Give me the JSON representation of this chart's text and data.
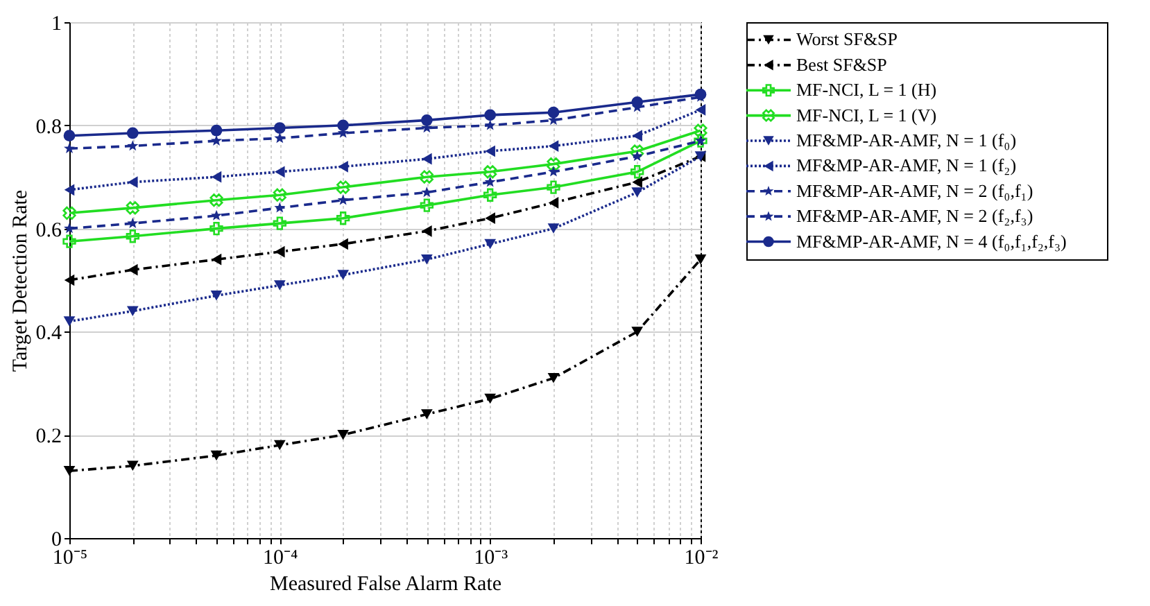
{
  "chart_data": {
    "type": "line",
    "xlabel": "Measured False Alarm Rate",
    "ylabel": "Target Detection Rate",
    "log": "x",
    "grid": true,
    "legend": "right",
    "x": [
      1e-05,
      2e-05,
      5e-05,
      0.0001,
      0.0002,
      0.0005,
      0.001,
      0.002,
      0.005,
      0.01
    ],
    "xlim": [
      1e-05,
      0.01
    ],
    "xticks": [
      {
        "value": 1e-05,
        "label": "10⁻⁵"
      },
      {
        "value": 2e-05,
        "label": null
      },
      {
        "value": 3e-05,
        "label": null
      },
      {
        "value": 4e-05,
        "label": null
      },
      {
        "value": 5e-05,
        "label": null
      },
      {
        "value": 6e-05,
        "label": null
      },
      {
        "value": 7e-05,
        "label": null
      },
      {
        "value": 8e-05,
        "label": null
      },
      {
        "value": 9e-05,
        "label": null
      },
      {
        "value": 0.0001,
        "label": "10⁻⁴"
      },
      {
        "value": 0.0002,
        "label": null
      },
      {
        "value": 0.0003,
        "label": null
      },
      {
        "value": 0.0004,
        "label": null
      },
      {
        "value": 0.0005,
        "label": null
      },
      {
        "value": 0.0006,
        "label": null
      },
      {
        "value": 0.0007,
        "label": null
      },
      {
        "value": 0.0008,
        "label": null
      },
      {
        "value": 0.0009,
        "label": null
      },
      {
        "value": 0.001,
        "label": "10⁻³"
      },
      {
        "value": 0.002,
        "label": null
      },
      {
        "value": 0.003,
        "label": null
      },
      {
        "value": 0.004,
        "label": null
      },
      {
        "value": 0.005,
        "label": null
      },
      {
        "value": 0.006,
        "label": null
      },
      {
        "value": 0.007,
        "label": null
      },
      {
        "value": 0.008,
        "label": null
      },
      {
        "value": 0.009,
        "label": null
      },
      {
        "value": 0.01,
        "label": "10⁻²"
      }
    ],
    "ylim": [
      0,
      1
    ],
    "yticks": [
      0,
      0.2,
      0.4,
      0.6,
      0.8,
      1
    ],
    "series": [
      {
        "name": "Worst SF&SP",
        "color": "#000000",
        "marker": "triangle-down",
        "line_style": "dashdot",
        "values": [
          0.13,
          0.14,
          0.16,
          0.18,
          0.2,
          0.24,
          0.27,
          0.31,
          0.4,
          0.54
        ]
      },
      {
        "name": "Best SF&SP",
        "color": "#000000",
        "marker": "triangle-left",
        "line_style": "dashdot",
        "values": [
          0.5,
          0.52,
          0.54,
          0.555,
          0.57,
          0.595,
          0.62,
          0.65,
          0.69,
          0.74
        ]
      },
      {
        "name": "MF-NCI, L = 1 (H)",
        "color": "#22dd22",
        "marker": "cross",
        "line_style": "solid",
        "values": [
          0.575,
          0.585,
          0.6,
          0.61,
          0.62,
          0.645,
          0.665,
          0.68,
          0.71,
          0.77
        ]
      },
      {
        "name": "MF-NCI, L = 1 (V)",
        "color": "#22dd22",
        "marker": "x",
        "line_style": "solid",
        "values": [
          0.63,
          0.64,
          0.655,
          0.665,
          0.68,
          0.7,
          0.71,
          0.725,
          0.75,
          0.79
        ]
      },
      {
        "name": "MF&MP-AR-AMF, N = 1 (f₀)",
        "color": "#1a2a8c",
        "marker": "triangle-down",
        "line_style": "dotted",
        "values": [
          0.42,
          0.44,
          0.47,
          0.49,
          0.51,
          0.54,
          0.57,
          0.6,
          0.67,
          0.74
        ]
      },
      {
        "name": "MF&MP-AR-AMF, N = 1 (f₂)",
        "color": "#1a2a8c",
        "marker": "triangle-left",
        "line_style": "dotted",
        "values": [
          0.675,
          0.69,
          0.7,
          0.71,
          0.72,
          0.735,
          0.75,
          0.76,
          0.78,
          0.83
        ]
      },
      {
        "name": "MF&MP-AR-AMF, N = 2 (f₀,f₁)",
        "color": "#1a2a8c",
        "marker": "star",
        "line_style": "dashed",
        "values": [
          0.6,
          0.61,
          0.625,
          0.64,
          0.655,
          0.67,
          0.69,
          0.71,
          0.74,
          0.77
        ]
      },
      {
        "name": "MF&MP-AR-AMF, N = 2 (f₂,f₃)",
        "color": "#1a2a8c",
        "marker": "star",
        "line_style": "dashed",
        "values": [
          0.755,
          0.76,
          0.77,
          0.775,
          0.785,
          0.795,
          0.8,
          0.81,
          0.835,
          0.855
        ]
      },
      {
        "name": "MF&MP-AR-AMF, N = 4 (f₀,f₁,f₂,f₃)",
        "color": "#1a2a8c",
        "marker": "circle",
        "line_style": "solid",
        "values": [
          0.78,
          0.785,
          0.79,
          0.795,
          0.8,
          0.81,
          0.82,
          0.825,
          0.845,
          0.86
        ]
      }
    ]
  }
}
